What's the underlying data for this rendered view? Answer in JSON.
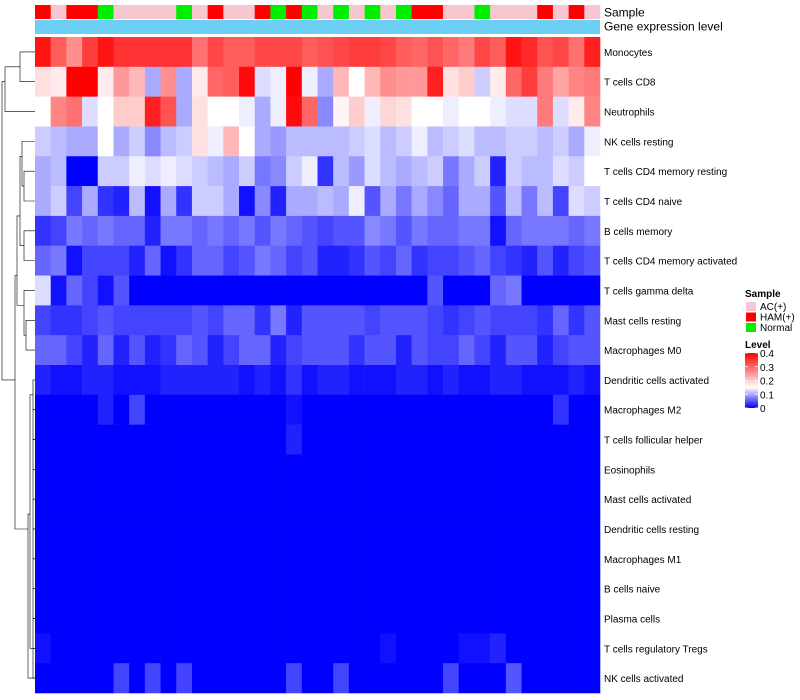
{
  "chart_data": {
    "type": "heatmap",
    "annotation_rows": [
      "Sample",
      "Gene expression level"
    ],
    "rows": [
      "Monocytes",
      "T cells CD8",
      "Neutrophils",
      "NK cells resting",
      "T cells CD4 memory resting",
      "T cells CD4 naive",
      "B cells memory",
      "T cells CD4 memory activated",
      "T cells gamma delta",
      "Mast cells resting",
      "Macrophages M0",
      "Dendritic cells activated",
      "Macrophages M2",
      "T cells follicular helper",
      "Eosinophils",
      "Mast cells activated",
      "Dendritic cells resting",
      "Macrophages M1",
      "B cells naive",
      "Plasma cells",
      "T cells regulatory  Tregs",
      "NK cells activated"
    ],
    "sample_groups": [
      "AC(+)",
      "HAM(+)",
      "Normal"
    ],
    "sample_colors": {
      "AC(+)": "#f8c6d0",
      "HAM(+)": "#ff0000",
      "Normal": "#00ee00"
    },
    "samples": [
      "HAM(+)",
      "AC(+)",
      "HAM(+)",
      "HAM(+)",
      "Normal",
      "AC(+)",
      "AC(+)",
      "AC(+)",
      "AC(+)",
      "Normal",
      "AC(+)",
      "HAM(+)",
      "AC(+)",
      "AC(+)",
      "HAM(+)",
      "Normal",
      "HAM(+)",
      "Normal",
      "AC(+)",
      "Normal",
      "AC(+)",
      "Normal",
      "AC(+)",
      "Normal",
      "HAM(+)",
      "HAM(+)",
      "AC(+)",
      "AC(+)",
      "Normal",
      "AC(+)",
      "AC(+)",
      "AC(+)",
      "HAM(+)",
      "AC(+)",
      "HAM(+)",
      "AC(+)"
    ],
    "expression_level_color": "#6ecff5",
    "legend": {
      "sample_title": "Sample",
      "level_title": "Level",
      "level_ticks": [
        "0.4",
        "0.3",
        "0.2",
        "0.1",
        "0"
      ],
      "scale_low_color": "#0000ff",
      "scale_mid_color": "#ffffff",
      "scale_high_color": "#ff0000",
      "scale_mid_value": 0.15
    },
    "value_range": [
      0,
      0.4
    ],
    "values": [
      [
        0.38,
        0.31,
        0.26,
        0.34,
        0.38,
        0.35,
        0.35,
        0.35,
        0.35,
        0.35,
        0.29,
        0.33,
        0.31,
        0.31,
        0.33,
        0.33,
        0.33,
        0.31,
        0.32,
        0.33,
        0.34,
        0.34,
        0.33,
        0.31,
        0.3,
        0.32,
        0.3,
        0.28,
        0.33,
        0.31,
        0.38,
        0.36,
        0.32,
        0.33,
        0.29,
        0.37
      ],
      [
        0.18,
        0.17,
        0.4,
        0.4,
        0.17,
        0.25,
        0.22,
        0.1,
        0.26,
        0.1,
        0.17,
        0.3,
        0.31,
        0.39,
        0.13,
        0.14,
        0.4,
        0.14,
        0.1,
        0.22,
        0.15,
        0.22,
        0.26,
        0.25,
        0.25,
        0.37,
        0.18,
        0.2,
        0.12,
        0.17,
        0.3,
        0.34,
        0.28,
        0.24,
        0.27,
        0.28
      ],
      [
        0.15,
        0.27,
        0.29,
        0.13,
        0.15,
        0.2,
        0.2,
        0.37,
        0.32,
        0.1,
        0.18,
        0.15,
        0.15,
        0.14,
        0.1,
        0.14,
        0.39,
        0.3,
        0.08,
        0.16,
        0.2,
        0.14,
        0.19,
        0.18,
        0.15,
        0.15,
        0.14,
        0.15,
        0.15,
        0.14,
        0.13,
        0.13,
        0.28,
        0.13,
        0.17,
        0.27
      ],
      [
        0.12,
        0.11,
        0.1,
        0.1,
        0.15,
        0.1,
        0.12,
        0.08,
        0.11,
        0.12,
        0.18,
        0.14,
        0.22,
        0.15,
        0.1,
        0.09,
        0.11,
        0.11,
        0.11,
        0.11,
        0.12,
        0.13,
        0.11,
        0.12,
        0.14,
        0.11,
        0.12,
        0.13,
        0.11,
        0.11,
        0.12,
        0.12,
        0.11,
        0.12,
        0.1,
        0.14
      ],
      [
        0.1,
        0.11,
        0,
        0,
        0.12,
        0.12,
        0.14,
        0.13,
        0.14,
        0.13,
        0.12,
        0.11,
        0.1,
        0.12,
        0.07,
        0.08,
        0.12,
        0.14,
        0.03,
        0.11,
        0.09,
        0.13,
        0.11,
        0.1,
        0.11,
        0.12,
        0.07,
        0.1,
        0.12,
        0.02,
        0.12,
        0.11,
        0.11,
        0.13,
        0.12,
        0.15
      ],
      [
        0.1,
        0.12,
        0.04,
        0.1,
        0.03,
        0.02,
        0.11,
        0.01,
        0.1,
        0.03,
        0.12,
        0.12,
        0.1,
        0.01,
        0.08,
        0.02,
        0.1,
        0.1,
        0.11,
        0.1,
        0.14,
        0.05,
        0.1,
        0.07,
        0.1,
        0.08,
        0.06,
        0.1,
        0.1,
        0.05,
        0.11,
        0.07,
        0.11,
        0.04,
        0.13,
        0.12
      ],
      [
        0.03,
        0.04,
        0.07,
        0.06,
        0.07,
        0.06,
        0.06,
        0.02,
        0.07,
        0.07,
        0.06,
        0.07,
        0.06,
        0.07,
        0.05,
        0.07,
        0.06,
        0.05,
        0.04,
        0.05,
        0.05,
        0.08,
        0.07,
        0.05,
        0.07,
        0.06,
        0.06,
        0.07,
        0.07,
        0.01,
        0.06,
        0.07,
        0.07,
        0.07,
        0.06,
        0.07
      ],
      [
        0.06,
        0.07,
        0.01,
        0.04,
        0.04,
        0.04,
        0.02,
        0.06,
        0.01,
        0.03,
        0.06,
        0.06,
        0.04,
        0.05,
        0.07,
        0.06,
        0.04,
        0.05,
        0.02,
        0.02,
        0.03,
        0.05,
        0.04,
        0.06,
        0.03,
        0.04,
        0.04,
        0.05,
        0.06,
        0.04,
        0.03,
        0.02,
        0.05,
        0.02,
        0.04,
        0.05
      ],
      [
        0.13,
        0.01,
        0.06,
        0.04,
        0.01,
        0.05,
        0,
        0,
        0,
        0,
        0,
        0,
        0,
        0,
        0,
        0,
        0,
        0,
        0,
        0,
        0,
        0,
        0,
        0,
        0,
        0.05,
        0,
        0,
        0,
        0.06,
        0.07,
        0,
        0,
        0,
        0,
        0
      ],
      [
        0.04,
        0.03,
        0.03,
        0.04,
        0.05,
        0.04,
        0.04,
        0.04,
        0.04,
        0.04,
        0.05,
        0.04,
        0.06,
        0.06,
        0.03,
        0.07,
        0.02,
        0.05,
        0.05,
        0.05,
        0.05,
        0.04,
        0.05,
        0.05,
        0.05,
        0.04,
        0.03,
        0.04,
        0.05,
        0.04,
        0.04,
        0.04,
        0.03,
        0.06,
        0.03,
        0.05
      ],
      [
        0.06,
        0.06,
        0.04,
        0.02,
        0.06,
        0.02,
        0.05,
        0.02,
        0.03,
        0.06,
        0.05,
        0.02,
        0.04,
        0.06,
        0.06,
        0.02,
        0.04,
        0.05,
        0.05,
        0.05,
        0.03,
        0.05,
        0.05,
        0.02,
        0.05,
        0.04,
        0.04,
        0.06,
        0.04,
        0.02,
        0.05,
        0.05,
        0.02,
        0.04,
        0.05,
        0.05
      ],
      [
        0.02,
        0.01,
        0.01,
        0.02,
        0.02,
        0.01,
        0.01,
        0.01,
        0.02,
        0.02,
        0.02,
        0.02,
        0.02,
        0.01,
        0.02,
        0.01,
        0.03,
        0.01,
        0.02,
        0.02,
        0.01,
        0.01,
        0.01,
        0.02,
        0.02,
        0.01,
        0.02,
        0.01,
        0.01,
        0.02,
        0.02,
        0.01,
        0.01,
        0.01,
        0.02,
        0.01
      ],
      [
        0,
        0,
        0,
        0,
        0.02,
        0,
        0.04,
        0,
        0,
        0,
        0,
        0,
        0,
        0,
        0,
        0,
        0.01,
        0,
        0,
        0,
        0,
        0,
        0,
        0,
        0,
        0,
        0,
        0,
        0,
        0,
        0,
        0,
        0,
        0.03,
        0,
        0
      ],
      [
        0,
        0,
        0,
        0,
        0,
        0,
        0,
        0,
        0,
        0,
        0,
        0,
        0,
        0,
        0,
        0,
        0.02,
        0,
        0,
        0,
        0,
        0,
        0,
        0,
        0,
        0,
        0,
        0,
        0,
        0,
        0,
        0,
        0,
        0,
        0,
        0
      ],
      [
        0,
        0,
        0,
        0,
        0,
        0,
        0,
        0,
        0,
        0,
        0,
        0,
        0,
        0,
        0,
        0,
        0,
        0,
        0,
        0,
        0,
        0,
        0,
        0,
        0,
        0,
        0,
        0,
        0,
        0,
        0,
        0,
        0,
        0,
        0,
        0
      ],
      [
        0,
        0,
        0,
        0,
        0,
        0,
        0,
        0,
        0,
        0,
        0,
        0,
        0,
        0,
        0,
        0,
        0,
        0,
        0,
        0,
        0,
        0,
        0,
        0,
        0,
        0,
        0,
        0,
        0,
        0,
        0,
        0,
        0,
        0,
        0,
        0
      ],
      [
        0,
        0,
        0,
        0,
        0,
        0,
        0,
        0,
        0,
        0,
        0,
        0,
        0,
        0,
        0,
        0,
        0,
        0,
        0,
        0,
        0,
        0,
        0,
        0,
        0,
        0,
        0,
        0,
        0,
        0,
        0,
        0,
        0,
        0,
        0,
        0
      ],
      [
        0,
        0,
        0,
        0,
        0,
        0,
        0,
        0,
        0,
        0,
        0,
        0,
        0,
        0,
        0,
        0,
        0,
        0,
        0,
        0,
        0,
        0,
        0,
        0,
        0,
        0,
        0,
        0,
        0,
        0,
        0,
        0,
        0,
        0,
        0,
        0
      ],
      [
        0,
        0,
        0,
        0,
        0,
        0,
        0,
        0,
        0,
        0,
        0,
        0,
        0,
        0,
        0,
        0,
        0,
        0,
        0,
        0,
        0,
        0,
        0,
        0,
        0,
        0,
        0,
        0,
        0,
        0,
        0,
        0,
        0,
        0,
        0,
        0
      ],
      [
        0,
        0,
        0,
        0,
        0,
        0,
        0,
        0,
        0,
        0,
        0,
        0,
        0,
        0,
        0,
        0,
        0,
        0,
        0,
        0,
        0,
        0,
        0,
        0,
        0,
        0,
        0,
        0,
        0,
        0,
        0,
        0,
        0,
        0,
        0,
        0
      ],
      [
        0.01,
        0,
        0,
        0,
        0,
        0,
        0,
        0,
        0,
        0,
        0,
        0,
        0,
        0,
        0,
        0,
        0,
        0,
        0,
        0,
        0,
        0,
        0.01,
        0,
        0,
        0,
        0,
        0.01,
        0.01,
        0.02,
        0,
        0,
        0,
        0,
        0,
        0
      ],
      [
        0,
        0,
        0,
        0,
        0,
        0.04,
        0,
        0.04,
        0,
        0.04,
        0,
        0,
        0,
        0,
        0,
        0,
        0.04,
        0,
        0,
        0.04,
        0,
        0,
        0,
        0,
        0,
        0,
        0.04,
        0,
        0,
        0,
        0.05,
        0,
        0,
        0,
        0,
        0
      ]
    ]
  }
}
